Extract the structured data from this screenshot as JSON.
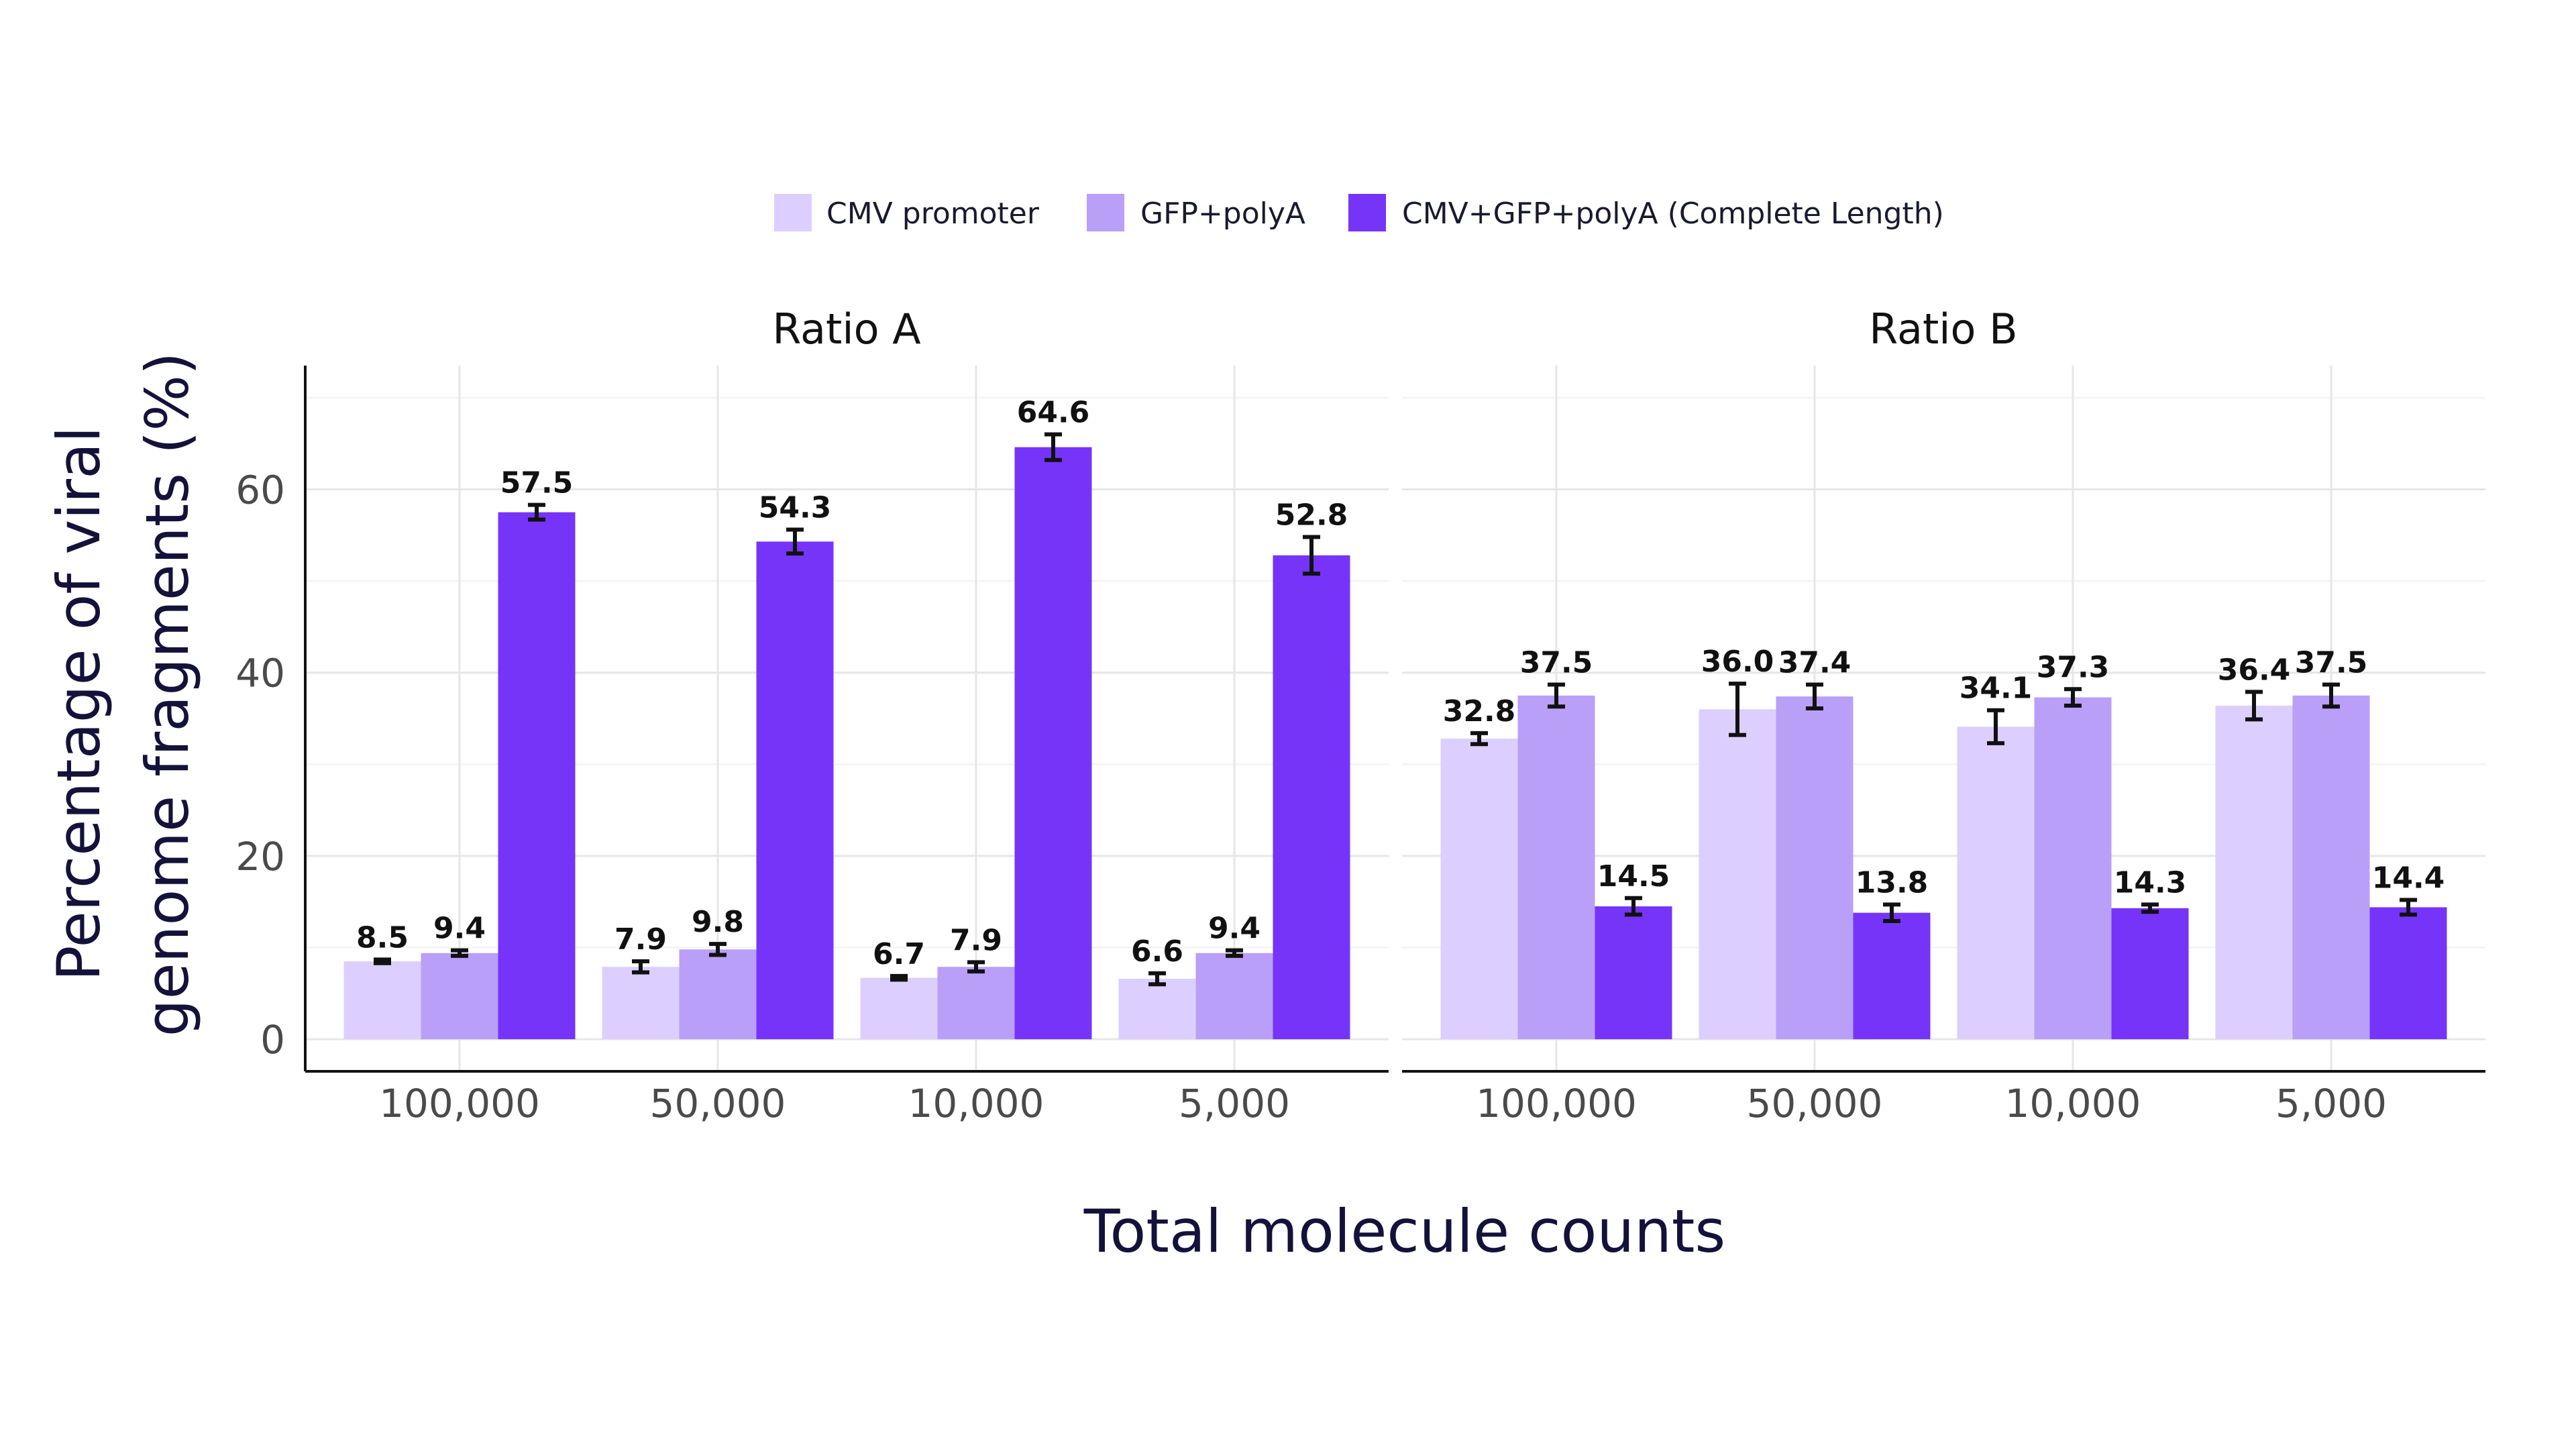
{
  "chart_data": {
    "type": "bar",
    "xlabel": "Total molecule counts",
    "ylabel": "Percentage of viral genome fragments (%)",
    "ylabel_lines": [
      "Percentage of viral",
      "genome fragments (%)"
    ],
    "ylim": [
      -3.5,
      73.5
    ],
    "yticks": [
      0,
      20,
      40,
      60
    ],
    "grid": true,
    "legend_position": "top",
    "categories": [
      "100,000",
      "50,000",
      "10,000",
      "5,000"
    ],
    "series": [
      {
        "name": "CMV promoter",
        "color": "#dccfff"
      },
      {
        "name": "GFP+polyA",
        "color": "#b99ff7"
      },
      {
        "name": "CMV+GFP+polyA (Complete Length)",
        "color": "#7634f9"
      }
    ],
    "panels": [
      {
        "title": "Ratio A",
        "values": [
          [
            8.5,
            7.9,
            6.7,
            6.6
          ],
          [
            9.4,
            9.8,
            7.9,
            9.4
          ],
          [
            57.5,
            54.3,
            64.6,
            52.8
          ]
        ],
        "labels": [
          [
            "8.5",
            "7.9",
            "6.7",
            "6.6"
          ],
          [
            "9.4",
            "9.8",
            "7.9",
            "9.4"
          ],
          [
            "57.5",
            "54.3",
            "64.6",
            "52.8"
          ]
        ],
        "errors": [
          [
            0.2,
            0.6,
            0.2,
            0.6
          ],
          [
            0.3,
            0.6,
            0.5,
            0.3
          ],
          [
            0.8,
            1.3,
            1.4,
            2.0
          ]
        ]
      },
      {
        "title": "Ratio B",
        "values": [
          [
            32.8,
            36.0,
            34.1,
            36.4
          ],
          [
            37.5,
            37.4,
            37.3,
            37.5
          ],
          [
            14.5,
            13.8,
            14.3,
            14.4
          ]
        ],
        "labels": [
          [
            "32.8",
            "36.0",
            "34.1",
            "36.4"
          ],
          [
            "37.5",
            "37.4",
            "37.3",
            "37.5"
          ],
          [
            "14.5",
            "13.8",
            "14.3",
            "14.4"
          ]
        ],
        "errors": [
          [
            0.6,
            2.8,
            1.8,
            1.5
          ],
          [
            1.2,
            1.3,
            0.9,
            1.2
          ],
          [
            0.9,
            0.9,
            0.4,
            0.8
          ]
        ]
      }
    ]
  }
}
